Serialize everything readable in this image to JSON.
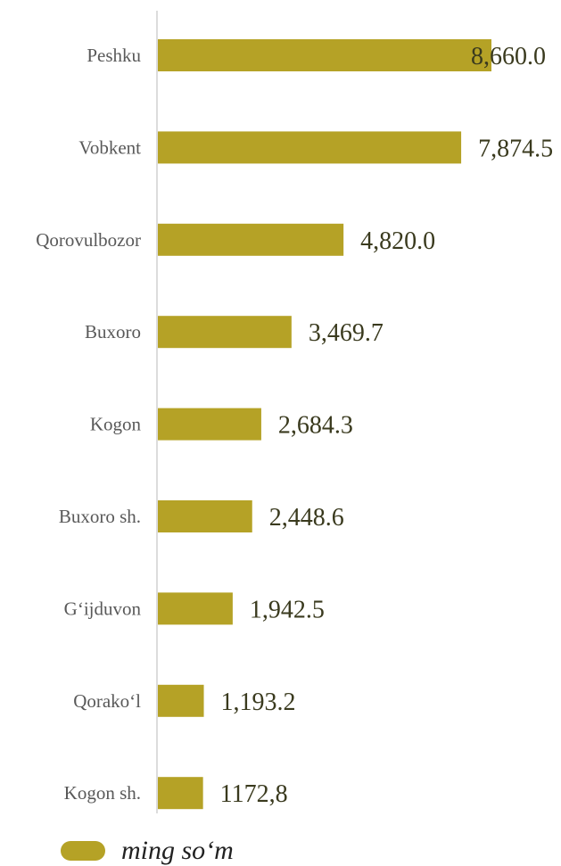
{
  "chart_data": {
    "type": "bar",
    "orientation": "horizontal",
    "categories": [
      "Peshku",
      "Vobkent",
      "Qorovulbozor",
      "Buxoro",
      "Kogon",
      "Buxoro sh.",
      "G‘ijduvon",
      "Qorako‘l",
      "Kogon sh."
    ],
    "series": [
      {
        "name": "ming so‘m",
        "values": [
          8660.0,
          7874.5,
          4820.0,
          3469.7,
          2684.3,
          2448.6,
          1942.5,
          1193.2,
          1172.8
        ],
        "value_labels": [
          "8,660.0",
          "7,874.5",
          "4,820.0",
          "3,469.7",
          "2,684.3",
          "2,448.6",
          "1,942.5",
          "1,193.2",
          "1172,8"
        ],
        "color": "#b5a226"
      }
    ],
    "title": "",
    "xlabel": "",
    "ylabel": "",
    "xlim": [
      0,
      8660
    ],
    "grid": false,
    "legend_position": "bottom-left"
  }
}
